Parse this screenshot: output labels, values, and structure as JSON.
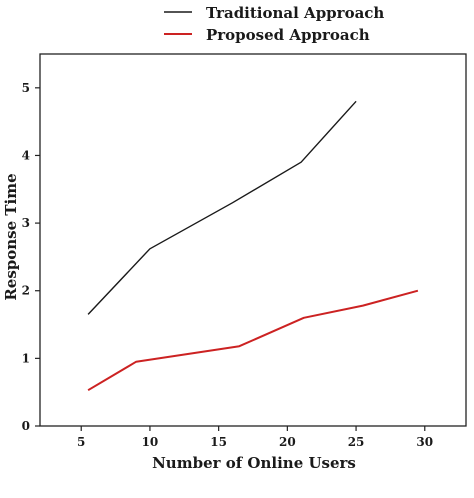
{
  "chart_data": {
    "type": "line",
    "xlabel": "Number of Online Users",
    "ylabel": "Response Time",
    "xlim": [
      2,
      33
    ],
    "ylim": [
      0,
      5.5
    ],
    "x_ticks": [
      5,
      10,
      15,
      20,
      25,
      30
    ],
    "y_ticks": [
      0,
      1,
      2,
      3,
      4,
      5
    ],
    "grid": false,
    "legend_position": "top-center",
    "series": [
      {
        "name": "Traditional Approach",
        "color": "#1a1a1a",
        "x": [
          5.5,
          10,
          16,
          21,
          25
        ],
        "y": [
          1.65,
          2.62,
          3.3,
          3.9,
          4.8
        ]
      },
      {
        "name": "Proposed Approach",
        "color": "#cc2222",
        "x": [
          5.5,
          9,
          16.5,
          21.2,
          25.5,
          29.5
        ],
        "y": [
          0.53,
          0.95,
          1.18,
          1.6,
          1.78,
          2.0
        ]
      }
    ]
  }
}
